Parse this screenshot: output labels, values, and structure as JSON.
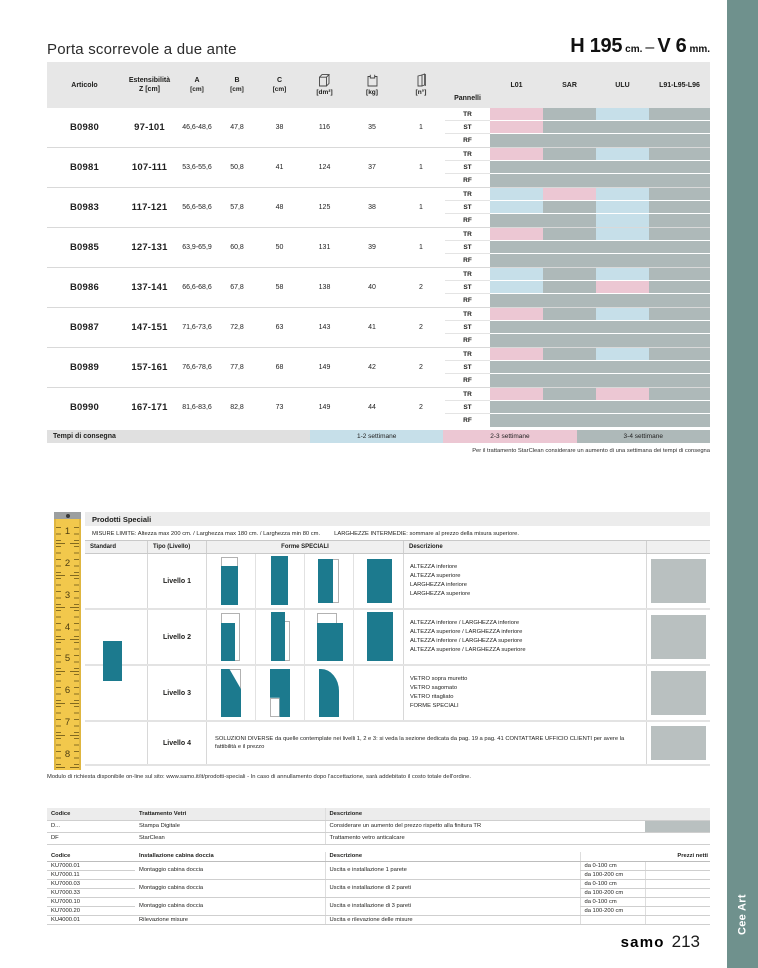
{
  "page": {
    "title": "Porta scorrevole a due ante",
    "spec": {
      "h_value": "H 195",
      "h_unit": "cm.",
      "dash": "–",
      "v_value": "V 6",
      "v_unit": "mm."
    },
    "footer": {
      "brand": "samo",
      "page_number": "213"
    },
    "sidebar_label": "Cee Art"
  },
  "main_table": {
    "headers": {
      "articolo": "Articolo",
      "estensibilita_line1": "Estensibilità",
      "estensibilita_line2": "Z [cm]",
      "a": "A",
      "a_unit": "[cm]",
      "b": "B",
      "b_unit": "[cm]",
      "c": "C",
      "c_unit": "[cm]",
      "volume_unit": "[dm³]",
      "weight_unit": "[kg]",
      "panels_unit": "[n°]",
      "pannelli": "Pannelli",
      "finishes": [
        "L01",
        "SAR",
        "ULU",
        "L91-L95-L96"
      ]
    },
    "panel_types": [
      "TR",
      "ST",
      "RF"
    ],
    "rows": [
      {
        "articolo": "B0980",
        "z": "97-101",
        "a": "46,6-48,6",
        "b": "47,8",
        "c": "38",
        "dm3": "116",
        "kg": "35",
        "n": "1",
        "colors": [
          [
            "P",
            "G",
            "B",
            "G"
          ],
          [
            "P",
            "G",
            "G",
            "G"
          ],
          [
            "G",
            "G",
            "G",
            "G"
          ]
        ]
      },
      {
        "articolo": "B0981",
        "z": "107-111",
        "a": "53,6-55,6",
        "b": "50,8",
        "c": "41",
        "dm3": "124",
        "kg": "37",
        "n": "1",
        "colors": [
          [
            "P",
            "G",
            "B",
            "G"
          ],
          [
            "G",
            "G",
            "G",
            "G"
          ],
          [
            "G",
            "G",
            "G",
            "G"
          ]
        ]
      },
      {
        "articolo": "B0983",
        "z": "117-121",
        "a": "56,6-58,6",
        "b": "57,8",
        "c": "48",
        "dm3": "125",
        "kg": "38",
        "n": "1",
        "colors": [
          [
            "B",
            "P",
            "B",
            "G"
          ],
          [
            "B",
            "G",
            "B",
            "G"
          ],
          [
            "G",
            "G",
            "B",
            "G"
          ]
        ]
      },
      {
        "articolo": "B0985",
        "z": "127-131",
        "a": "63,9-65,9",
        "b": "60,8",
        "c": "50",
        "dm3": "131",
        "kg": "39",
        "n": "1",
        "colors": [
          [
            "P",
            "G",
            "B",
            "G"
          ],
          [
            "G",
            "G",
            "G",
            "G"
          ],
          [
            "G",
            "G",
            "G",
            "G"
          ]
        ]
      },
      {
        "articolo": "B0986",
        "z": "137-141",
        "a": "66,6-68,6",
        "b": "67,8",
        "c": "58",
        "dm3": "138",
        "kg": "40",
        "n": "2",
        "colors": [
          [
            "B",
            "G",
            "B",
            "G"
          ],
          [
            "B",
            "G",
            "P",
            "G"
          ],
          [
            "G",
            "G",
            "G",
            "G"
          ]
        ]
      },
      {
        "articolo": "B0987",
        "z": "147-151",
        "a": "71,6-73,6",
        "b": "72,8",
        "c": "63",
        "dm3": "143",
        "kg": "41",
        "n": "2",
        "colors": [
          [
            "P",
            "G",
            "B",
            "G"
          ],
          [
            "G",
            "G",
            "G",
            "G"
          ],
          [
            "G",
            "G",
            "G",
            "G"
          ]
        ]
      },
      {
        "articolo": "B0989",
        "z": "157-161",
        "a": "76,6-78,6",
        "b": "77,8",
        "c": "68",
        "dm3": "149",
        "kg": "42",
        "n": "2",
        "colors": [
          [
            "P",
            "G",
            "B",
            "G"
          ],
          [
            "G",
            "G",
            "G",
            "G"
          ],
          [
            "G",
            "G",
            "G",
            "G"
          ]
        ]
      },
      {
        "articolo": "B0990",
        "z": "167-171",
        "a": "81,6-83,6",
        "b": "82,8",
        "c": "73",
        "dm3": "149",
        "kg": "44",
        "n": "2",
        "colors": [
          [
            "P",
            "G",
            "P",
            "G"
          ],
          [
            "G",
            "G",
            "G",
            "G"
          ],
          [
            "G",
            "G",
            "G",
            "G"
          ]
        ]
      }
    ]
  },
  "legend": {
    "label": "Tempi di consegna",
    "color_map": {
      "B": "#c6dfe9",
      "P": "#ecc7d3",
      "G": "#aeb9b9"
    },
    "items": [
      {
        "label": "1-2 settimane",
        "code": "B"
      },
      {
        "label": "2-3 settimane",
        "code": "P"
      },
      {
        "label": "3-4 settimane",
        "code": "G"
      }
    ],
    "note": "Per il trattamento StarClean considerare un aumento di una settimana dei tempi di consegna"
  },
  "special_products": {
    "title": "Prodotti Speciali",
    "limits": "MISURE LIMITE: Altezza max 200 cm. / Larghezza max 180 cm. / Larghezza min 80 cm.",
    "intermediate": "LARGHEZZE INTERMEDIE: sommare al prezzo della misura superiore.",
    "columns": {
      "standard": "Standard",
      "tipo": "Tipo (Livello)",
      "forme": "Forme SPECIALI",
      "descrizione": "Descrizione"
    },
    "ruler_numbers": [
      "1",
      "2",
      "3",
      "4",
      "5",
      "6",
      "7",
      "8"
    ],
    "levels": [
      {
        "name": "Livello 1",
        "descriptions": [
          "ALTEZZA inferiore",
          "ALTEZZA superiore",
          "LARGHEZZA inferiore",
          "LARGHEZZA superiore"
        ]
      },
      {
        "name": "Livello 2",
        "descriptions": [
          "ALTEZZA inferiore / LARGHEZZA inferiore",
          "ALTEZZA superiore / LARGHEZZA inferiore",
          "ALTEZZA inferiore / LARGHEZZA superiore",
          "ALTEZZA superiore / LARGHEZZA superiore"
        ]
      },
      {
        "name": "Livello 3",
        "descriptions": [
          "VETRO sopra muretto",
          "VETRO sagomato",
          "VETRO ritagliato",
          "FORME SPECIALI"
        ]
      },
      {
        "name": "Livello 4",
        "note": "SOLUZIONI DIVERSE da quelle contemplate nei livelli 1, 2 e 3: si veda la sezione dedicata da pag. 19 a pag. 41 CONTATTARE UFFICIO CLIENTI per avere la fattibilità e il prezzo"
      }
    ],
    "order_note": "Modulo di richiesta disponibile on-line sul sito: www.samo.it/it/prodotti-speciali - In caso di annullamento dopo l'accettazione, sarà addebitato il costo totale dell'ordine."
  },
  "glass_treatments": {
    "headers": {
      "codice": "Codice",
      "trattamento": "Trattamento Vetri",
      "descrizione": "Descrizione"
    },
    "rows": [
      {
        "codice": "D...",
        "trattamento": "Stampa Digitale",
        "descrizione": "Considerare un aumento del prezzo rispetto alla finitura TR"
      },
      {
        "codice": "DF",
        "trattamento": "StarClean",
        "descrizione": "Trattamento vetro anticalcare"
      }
    ]
  },
  "installation": {
    "headers": {
      "codice": "Codice",
      "installazione": "Installazione cabina doccia",
      "descrizione": "Descrizione",
      "prezzi": "Prezzi netti"
    },
    "groups": [
      {
        "service": "Montaggio cabina doccia",
        "descrizione": "Uscita e installazione 1 parete",
        "items": [
          {
            "codice": "KU7000.01",
            "range": "da 0-100 cm"
          },
          {
            "codice": "KU7000.11",
            "range": "da 100-200 cm"
          }
        ]
      },
      {
        "service": "Montaggio cabina doccia",
        "descrizione": "Uscita e installazione di 2 pareti",
        "items": [
          {
            "codice": "KU7000.03",
            "range": "da 0-100 cm"
          },
          {
            "codice": "KU7000.33",
            "range": "da 100-200 cm"
          }
        ]
      },
      {
        "service": "Montaggio cabina doccia",
        "descrizione": "Uscita e installazione di 3 pareti",
        "items": [
          {
            "codice": "KU7000.10",
            "range": "da 0-100 cm"
          },
          {
            "codice": "KU7000.20",
            "range": "da 100-200 cm"
          }
        ]
      },
      {
        "service": "Rilevazione misure",
        "descrizione": "Uscita e rilevazione delle misure",
        "items": [
          {
            "codice": "KU4000.01",
            "range": ""
          }
        ]
      }
    ]
  }
}
